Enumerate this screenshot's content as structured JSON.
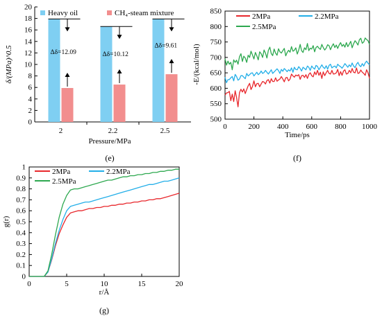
{
  "figure": {
    "panels": [
      "(e)",
      "(f)",
      "(g)"
    ]
  },
  "colors": {
    "heavy_oil": "#7fcff2",
    "ch4_steam": "#f28e8e",
    "p2": "#e8262b",
    "p22": "#22aee8",
    "p25": "#2da84f",
    "axis": "#000000"
  },
  "chart_data": [
    {
      "id": "e",
      "type": "bar",
      "ylabel": "δ/(MPa)^0.5",
      "xlabel": "Pressure/MPa",
      "ylim": [
        0,
        20
      ],
      "yticks": [
        "0",
        "2",
        "4",
        "6",
        "8",
        "10",
        "12",
        "14",
        "16",
        "18",
        "20"
      ],
      "categories": [
        "2",
        "2.2",
        "2.5"
      ],
      "series": [
        {
          "name": "Heavy oil",
          "color": "#7fcff2",
          "values": [
            17.9,
            16.6,
            17.9
          ]
        },
        {
          "name": "CH₄-steam mixture",
          "color": "#f28e8e",
          "values": [
            5.9,
            6.5,
            8.3
          ]
        }
      ],
      "annotations": [
        "Δδ=12.09",
        "Δδ=10.12",
        "Δδ=9.61"
      ],
      "legend": "top"
    },
    {
      "id": "f",
      "type": "line",
      "ylabel": "-E/(kcal/mol)",
      "xlabel": "Time/ps",
      "xlim": [
        0,
        1000
      ],
      "ylim": [
        500,
        850
      ],
      "xticks": [
        "0",
        "200",
        "400",
        "600",
        "800",
        "1000"
      ],
      "yticks": [
        "500",
        "550",
        "600",
        "650",
        "700",
        "750",
        "800",
        "850"
      ],
      "x_step": 10,
      "series": [
        {
          "name": "2MPa",
          "color": "#e8262b",
          "values": [
            578,
            585,
            586,
            590,
            560,
            581,
            557,
            592,
            570,
            540,
            586,
            597,
            588,
            598,
            583,
            596,
            608,
            616,
            596,
            606,
            624,
            605,
            615,
            616,
            605,
            614,
            622,
            620,
            614,
            625,
            628,
            617,
            631,
            622,
            622,
            634,
            623,
            627,
            630,
            638,
            630,
            621,
            634,
            635,
            624,
            630,
            646,
            640,
            636,
            643,
            640,
            644,
            629,
            641,
            642,
            635,
            644,
            632,
            645,
            650,
            641,
            637,
            653,
            644,
            658,
            642,
            652,
            632,
            653,
            641,
            650,
            658,
            648,
            646,
            658,
            646,
            647,
            650,
            661,
            641,
            654,
            642,
            656,
            660,
            646,
            648,
            658,
            650,
            664,
            652,
            650,
            666,
            648,
            650,
            659,
            652,
            648,
            642,
            660,
            650,
            632
          ]
        },
        {
          "name": "2.2MPa",
          "color": "#22aee8",
          "values": [
            636,
            618,
            628,
            628,
            634,
            638,
            624,
            645,
            638,
            626,
            630,
            641,
            641,
            636,
            631,
            648,
            640,
            644,
            649,
            650,
            640,
            646,
            652,
            644,
            648,
            656,
            648,
            651,
            658,
            652,
            646,
            653,
            660,
            648,
            653,
            658,
            663,
            657,
            648,
            661,
            655,
            664,
            659,
            654,
            660,
            656,
            666,
            652,
            668,
            661,
            660,
            670,
            664,
            656,
            668,
            664,
            660,
            672,
            668,
            658,
            672,
            666,
            662,
            674,
            671,
            660,
            668,
            676,
            668,
            664,
            673,
            662,
            674,
            678,
            666,
            670,
            672,
            666,
            678,
            673,
            670,
            665,
            672,
            680,
            674,
            668,
            676,
            670,
            682,
            672,
            667,
            678,
            684,
            674,
            670,
            680,
            672,
            682,
            688,
            681,
            676
          ]
        },
        {
          "name": "2.5MPa",
          "color": "#2da84f",
          "values": [
            696,
            675,
            688,
            678,
            684,
            660,
            692,
            684,
            691,
            678,
            702,
            712,
            687,
            704,
            698,
            684,
            707,
            700,
            720,
            708,
            695,
            716,
            705,
            692,
            718,
            712,
            700,
            724,
            714,
            698,
            723,
            733,
            712,
            706,
            727,
            714,
            707,
            728,
            718,
            714,
            722,
            729,
            705,
            716,
            723,
            717,
            735,
            720,
            723,
            731,
            711,
            724,
            742,
            722,
            716,
            731,
            725,
            745,
            722,
            730,
            727,
            738,
            718,
            732,
            736,
            730,
            726,
            742,
            732,
            724,
            730,
            741,
            738,
            725,
            736,
            744,
            732,
            740,
            729,
            740,
            748,
            736,
            742,
            733,
            748,
            735,
            743,
            752,
            731,
            744,
            754,
            748,
            740,
            757,
            762,
            746,
            750,
            763,
            758,
            754,
            742
          ]
        }
      ],
      "legend": "top"
    },
    {
      "id": "g",
      "type": "line",
      "ylabel": "g(r)",
      "xlabel": "r/Å",
      "xlim": [
        0,
        20
      ],
      "ylim": [
        0,
        1
      ],
      "xticks": [
        "0",
        "5",
        "10",
        "15",
        "20"
      ],
      "yticks": [
        "0",
        "0.1",
        "0.2",
        "0.3",
        "0.4",
        "0.5",
        "0.6",
        "0.7",
        "0.8",
        "0.9",
        "1"
      ],
      "x_step": 0.5,
      "series": [
        {
          "name": "2MPa",
          "color": "#e8262b",
          "values": [
            0,
            0,
            0,
            0,
            0,
            0.04,
            0.15,
            0.28,
            0.39,
            0.47,
            0.54,
            0.58,
            0.59,
            0.6,
            0.6,
            0.61,
            0.62,
            0.62,
            0.63,
            0.63,
            0.64,
            0.64,
            0.65,
            0.65,
            0.66,
            0.66,
            0.67,
            0.67,
            0.68,
            0.68,
            0.69,
            0.69,
            0.7,
            0.7,
            0.71,
            0.71,
            0.72,
            0.73,
            0.74,
            0.75,
            0.76
          ]
        },
        {
          "name": "2.2MPa",
          "color": "#22aee8",
          "values": [
            0,
            0,
            0,
            0,
            0,
            0.04,
            0.16,
            0.3,
            0.42,
            0.52,
            0.6,
            0.64,
            0.65,
            0.66,
            0.67,
            0.68,
            0.68,
            0.69,
            0.7,
            0.71,
            0.72,
            0.73,
            0.74,
            0.75,
            0.76,
            0.77,
            0.78,
            0.79,
            0.8,
            0.81,
            0.82,
            0.83,
            0.84,
            0.84,
            0.85,
            0.86,
            0.87,
            0.87,
            0.88,
            0.89,
            0.9
          ]
        },
        {
          "name": "2.5MPa",
          "color": "#2da84f",
          "values": [
            0,
            0,
            0,
            0,
            0,
            0.05,
            0.2,
            0.38,
            0.54,
            0.66,
            0.74,
            0.79,
            0.8,
            0.8,
            0.81,
            0.82,
            0.83,
            0.84,
            0.85,
            0.86,
            0.87,
            0.88,
            0.88,
            0.89,
            0.9,
            0.91,
            0.91,
            0.92,
            0.92,
            0.93,
            0.93,
            0.94,
            0.94,
            0.95,
            0.95,
            0.96,
            0.96,
            0.97,
            0.97,
            0.98,
            0.98
          ]
        }
      ],
      "legend": "top-left"
    }
  ]
}
